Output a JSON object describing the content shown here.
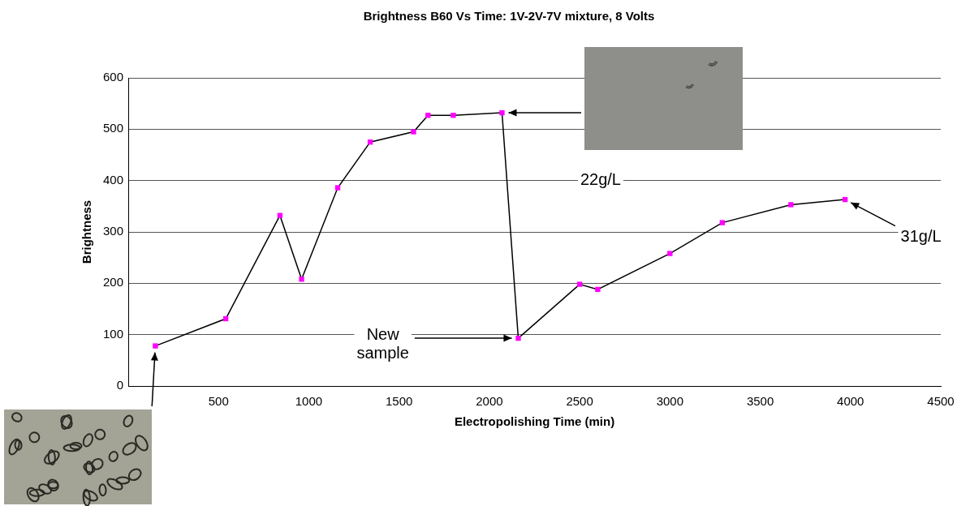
{
  "chart_data": {
    "type": "line",
    "title": "Brightness B60 Vs Time: 1V-2V-7V mixture, 8 Volts",
    "x_label": "Electropolishing Time (min)",
    "y_label": "Brightness",
    "x": [
      150,
      540,
      840,
      960,
      1160,
      1340,
      1580,
      1660,
      1800,
      2070,
      2160,
      2500,
      2600,
      3000,
      3290,
      3670,
      3970
    ],
    "values": [
      78,
      131,
      332,
      208,
      386,
      475,
      495,
      527,
      527,
      532,
      93,
      198,
      188,
      258,
      318,
      353,
      363
    ],
    "color": "#000000",
    "colors": [
      "#ff00ff",
      "#ff00ff",
      "#ff00ff",
      "#ff00ff",
      "#ff00ff",
      "#ff00ff",
      "#ff00ff",
      "#ff00ff",
      "#ff00ff",
      "#ff00ff",
      "#ff00ff",
      "#ff00ff",
      "#ff00ff",
      "#ff00ff",
      "#ff00ff",
      "#ff00ff",
      "#ff00ff"
    ],
    "marker": "square",
    "line_style": "solid",
    "xlim": [
      0,
      4500
    ],
    "xticks": [
      500,
      1000,
      1500,
      2000,
      2500,
      3000,
      3500,
      4000,
      4500
    ],
    "ylim": [
      0,
      600
    ],
    "yticks": [
      0,
      100,
      200,
      300,
      400,
      500,
      600
    ],
    "grid": true,
    "annotations": [
      {
        "text": "22g/L",
        "x": 2616,
        "y": 401
      },
      {
        "text": "New sample",
        "x": 1410,
        "y": 81
      },
      {
        "text": "31g/L",
        "x": 4390,
        "y": 289
      }
    ]
  }
}
